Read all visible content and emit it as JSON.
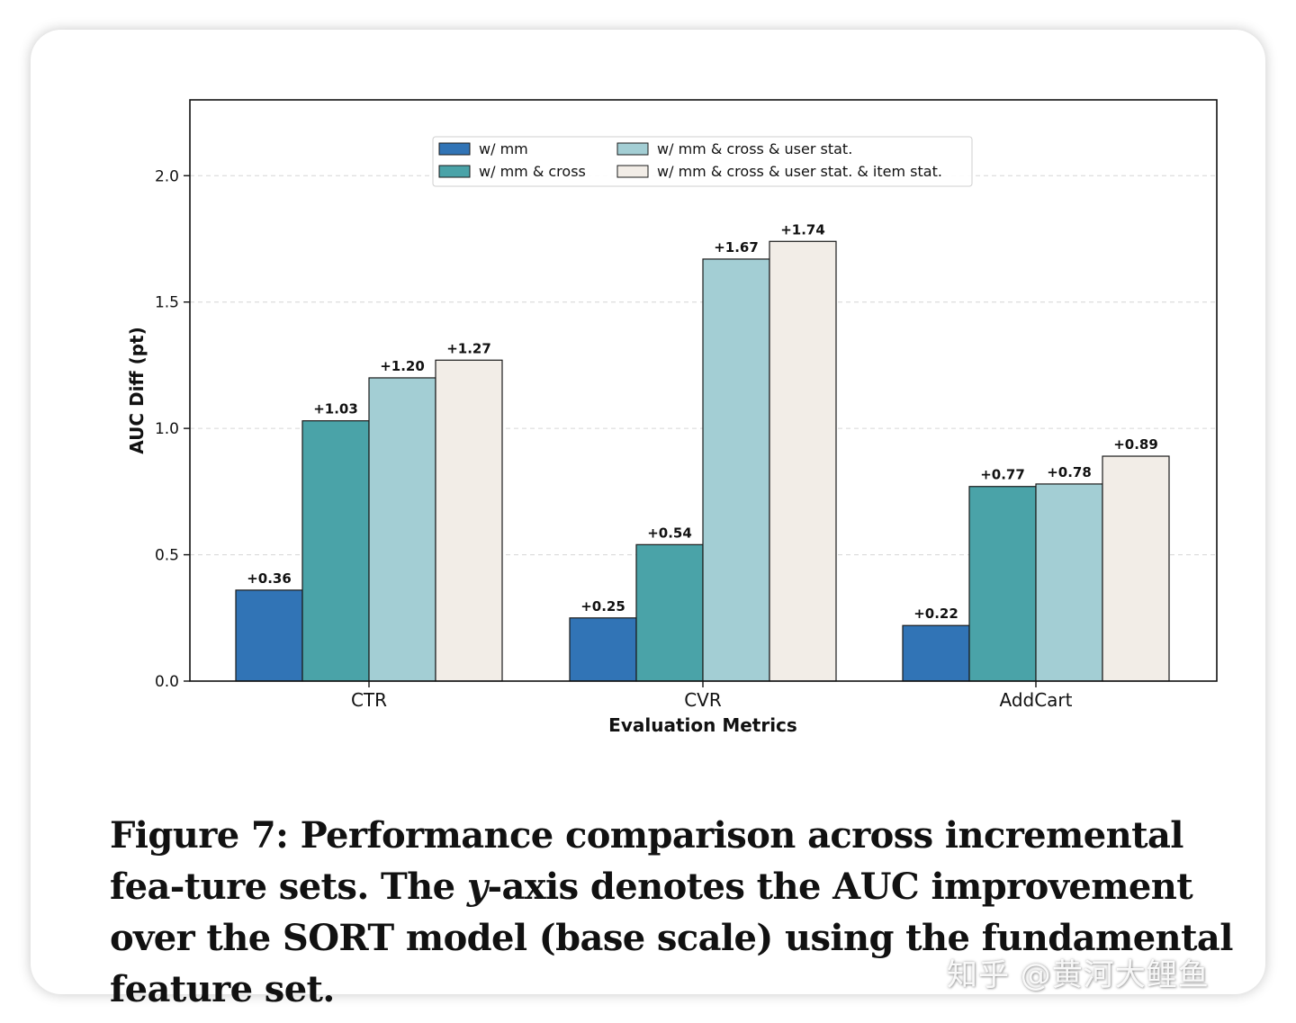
{
  "chart_data": {
    "type": "bar",
    "categories": [
      "CTR",
      "CVR",
      "AddCart"
    ],
    "series": [
      {
        "name": "w/ mm",
        "values": [
          0.36,
          0.25,
          0.22
        ],
        "labels": [
          "+0.36",
          "+0.25",
          "+0.22"
        ],
        "color": "#3174b6"
      },
      {
        "name": "w/ mm & cross",
        "values": [
          1.03,
          0.54,
          0.77
        ],
        "labels": [
          "+1.03",
          "+0.54",
          "+0.77"
        ],
        "color": "#4aa3a8"
      },
      {
        "name": "w/ mm & cross & user stat.",
        "values": [
          1.2,
          1.67,
          0.78
        ],
        "labels": [
          "+1.20",
          "+1.67",
          "+0.78"
        ],
        "color": "#a3ced4"
      },
      {
        "name": "w/ mm & cross & user stat. & item stat.",
        "values": [
          1.27,
          1.74,
          0.89
        ],
        "labels": [
          "+1.27",
          "+1.74",
          "+0.89"
        ],
        "color": "#f2ede7"
      }
    ],
    "xlabel": "Evaluation Metrics",
    "ylabel": "AUC Diff (pt)",
    "ylim": [
      0,
      2.3
    ],
    "yticks": [
      "0.0",
      "0.5",
      "1.0",
      "1.5",
      "2.0"
    ],
    "ytick_values": [
      0.0,
      0.5,
      1.0,
      1.5,
      2.0
    ],
    "grid": true,
    "legend_position": "top-center"
  },
  "caption": {
    "part1": "Figure 7: Performance comparison across incremental fea-ture sets. The ",
    "italic": "y",
    "part2": "-axis denotes the AUC improvement over the SORT model (base scale) using the fundamental feature set."
  },
  "watermark": "知乎 @黄河大鲤鱼"
}
